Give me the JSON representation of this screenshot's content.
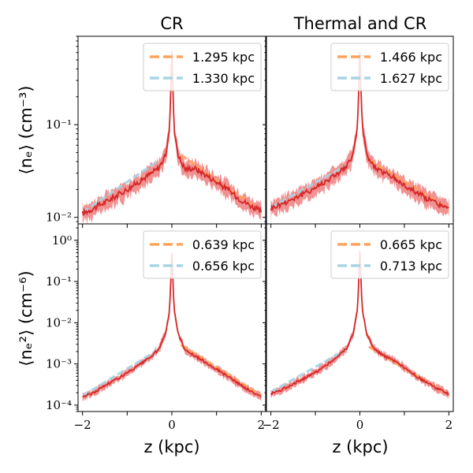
{
  "colors": {
    "fit_north": "#ffa35c",
    "fit_south": "#a8d4e4",
    "profile_line": "#d62728",
    "profile_band": "#ef7f7f",
    "legend_border": "#cccccc"
  },
  "chart_data": [
    {
      "type": "line",
      "panel": "top-left",
      "title": "CR",
      "ylabel": "⟨nₑ⟩ (cm⁻³)",
      "xlabel": "",
      "yscale": "log",
      "xlim": [
        -2.1,
        2.1
      ],
      "ylim": [
        0.0085,
        0.9
      ],
      "yticks": [
        {
          "value": 0.01,
          "label": "10⁻²"
        },
        {
          "value": 0.1,
          "label": "10⁻¹"
        }
      ],
      "xticks": [],
      "legend_position": "top-right",
      "series": [
        {
          "name": "1.295 kpc",
          "kind": "exp-fit-north",
          "scale_height": 1.295,
          "x_range": [
            0.2,
            2.0
          ],
          "amplitude": 0.0551
        },
        {
          "name": "1.330 kpc",
          "kind": "exp-fit-south",
          "scale_height": 1.33,
          "x_range": [
            -2.0,
            -0.3
          ],
          "amplitude": 0.0511
        },
        {
          "name": "profile",
          "kind": "profile",
          "peak": 0.62,
          "x": [
            -2.0,
            -1.75,
            -1.5,
            -1.25,
            -1.0,
            -0.75,
            -0.5,
            -0.3,
            -0.15,
            -0.05,
            0.0,
            0.05,
            0.15,
            0.3,
            0.5,
            0.75,
            1.0,
            1.25,
            1.5,
            1.75,
            2.0
          ],
          "y": [
            0.011,
            0.0125,
            0.0145,
            0.017,
            0.02,
            0.024,
            0.029,
            0.034,
            0.045,
            0.09,
            0.62,
            0.09,
            0.045,
            0.033,
            0.034,
            0.029,
            0.024,
            0.02,
            0.016,
            0.0135,
            0.0115
          ]
        }
      ]
    },
    {
      "type": "line",
      "panel": "top-right",
      "title": "Thermal and CR",
      "ylabel": "",
      "xlabel": "",
      "yscale": "log",
      "xlim": [
        -2.1,
        2.1
      ],
      "ylim": [
        0.0085,
        0.9
      ],
      "yticks": [],
      "xticks": [],
      "legend_position": "top-right",
      "series": [
        {
          "name": "1.466 kpc",
          "kind": "exp-fit-north",
          "scale_height": 1.466,
          "x_range": [
            0.2,
            2.0
          ],
          "amplitude": 0.0485
        },
        {
          "name": "1.627 kpc",
          "kind": "exp-fit-south",
          "scale_height": 1.627,
          "x_range": [
            -2.0,
            -0.3
          ],
          "amplitude": 0.0438
        },
        {
          "name": "profile",
          "kind": "profile",
          "peak": 0.6,
          "x": [
            -2.0,
            -1.75,
            -1.5,
            -1.25,
            -1.0,
            -0.75,
            -0.5,
            -0.3,
            -0.15,
            -0.05,
            0.0,
            0.05,
            0.15,
            0.3,
            0.5,
            0.75,
            1.0,
            1.25,
            1.5,
            1.75,
            2.0
          ],
          "y": [
            0.0125,
            0.014,
            0.016,
            0.018,
            0.021,
            0.025,
            0.03,
            0.035,
            0.048,
            0.1,
            0.6,
            0.1,
            0.048,
            0.036,
            0.031,
            0.027,
            0.022,
            0.019,
            0.016,
            0.014,
            0.0122
          ]
        }
      ]
    },
    {
      "type": "line",
      "panel": "bottom-left",
      "title": "",
      "ylabel": "⟨nₑ²⟩ (cm⁻⁶)",
      "xlabel": "z (kpc)",
      "yscale": "log",
      "xlim": [
        -2.1,
        2.1
      ],
      "ylim": [
        7e-05,
        2.5
      ],
      "yticks": [
        {
          "value": 0.0001,
          "label": "10⁻⁴"
        },
        {
          "value": 0.001,
          "label": "10⁻³"
        },
        {
          "value": 0.01,
          "label": "10⁻²"
        },
        {
          "value": 0.1,
          "label": "10⁻¹"
        },
        {
          "value": 1,
          "label": "10⁰"
        }
      ],
      "xticks": [
        {
          "value": -2,
          "label": "−2"
        },
        {
          "value": 0,
          "label": "0"
        },
        {
          "value": 2,
          "label": "2"
        }
      ],
      "legend_position": "top-right",
      "series": [
        {
          "name": "0.639 kpc",
          "kind": "exp-fit-north",
          "scale_height": 0.639,
          "x_range": [
            0.2,
            2.0
          ],
          "amplitude": 0.00398
        },
        {
          "name": "0.656 kpc",
          "kind": "exp-fit-south",
          "scale_height": 0.656,
          "x_range": [
            -2.0,
            -0.3
          ],
          "amplitude": 0.00354
        },
        {
          "name": "profile",
          "kind": "profile",
          "peak": 0.5,
          "x": [
            -2.0,
            -1.75,
            -1.5,
            -1.25,
            -1.0,
            -0.75,
            -0.5,
            -0.3,
            -0.15,
            -0.05,
            0.0,
            0.05,
            0.15,
            0.3,
            0.5,
            0.75,
            1.0,
            1.25,
            1.5,
            1.75,
            2.0
          ],
          "y": [
            0.00016,
            0.0002,
            0.0003,
            0.00042,
            0.0006,
            0.0009,
            0.0014,
            0.0022,
            0.005,
            0.02,
            0.5,
            0.02,
            0.005,
            0.0022,
            0.0016,
            0.0011,
            0.00075,
            0.0005,
            0.00033,
            0.00022,
            0.00016
          ]
        }
      ]
    },
    {
      "type": "line",
      "panel": "bottom-right",
      "title": "",
      "ylabel": "",
      "xlabel": "z (kpc)",
      "yscale": "log",
      "xlim": [
        -2.1,
        2.1
      ],
      "ylim": [
        7e-05,
        2.5
      ],
      "yticks": [],
      "xticks": [
        {
          "value": -2,
          "label": "−2"
        },
        {
          "value": 0,
          "label": "0"
        },
        {
          "value": 2,
          "label": "2"
        }
      ],
      "legend_position": "top-right",
      "series": [
        {
          "name": "0.665 kpc",
          "kind": "exp-fit-north",
          "scale_height": 0.665,
          "x_range": [
            0.2,
            2.0
          ],
          "amplitude": 0.00354
        },
        {
          "name": "0.713 kpc",
          "kind": "exp-fit-south",
          "scale_height": 0.713,
          "x_range": [
            -2.0,
            -0.3
          ],
          "amplitude": 0.00344
        },
        {
          "name": "profile",
          "kind": "profile",
          "peak": 0.55,
          "x": [
            -2.0,
            -1.75,
            -1.5,
            -1.25,
            -1.0,
            -0.75,
            -0.5,
            -0.3,
            -0.15,
            -0.05,
            0.0,
            0.05,
            0.15,
            0.3,
            0.5,
            0.75,
            1.0,
            1.25,
            1.5,
            1.75,
            2.0
          ],
          "y": [
            0.00019,
            0.00024,
            0.00033,
            0.00045,
            0.00062,
            0.00095,
            0.0015,
            0.0024,
            0.0055,
            0.022,
            0.55,
            0.022,
            0.0055,
            0.0024,
            0.0017,
            0.0012,
            0.0008,
            0.00052,
            0.00035,
            0.00025,
            0.00018
          ]
        }
      ]
    }
  ]
}
